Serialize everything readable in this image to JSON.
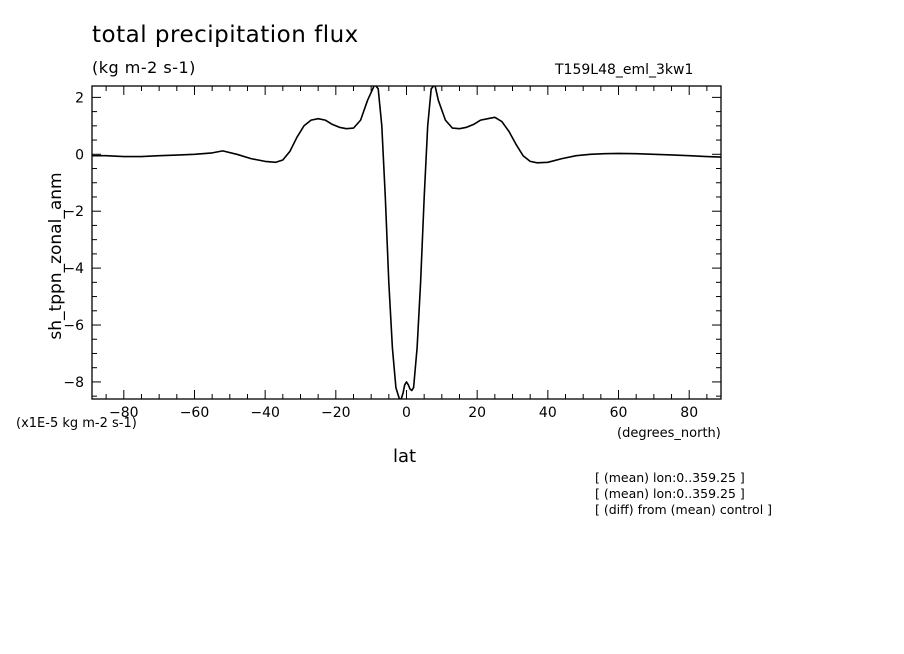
{
  "chart_data": {
    "type": "line",
    "title": "total precipitation flux",
    "subtitle": "(kg m-2 s-1)",
    "run_label": "T159L48_eml_3kw1",
    "xlabel": "lat",
    "x_unit_label": "(degrees_north)",
    "ylabel": "sh_tppn_zonal_anm",
    "y_unit_label": "(x1E-5 kg m-2 s-1)",
    "xlim": [
      -89,
      89
    ],
    "ylim": [
      -8.6,
      2.4
    ],
    "x_ticks": [
      -80,
      -60,
      -40,
      -20,
      0,
      20,
      40,
      60,
      80
    ],
    "y_ticks": [
      -8,
      -6,
      -4,
      -2,
      0,
      2
    ],
    "grid": false,
    "series": [
      {
        "x": [
          -89,
          -85,
          -80,
          -75,
          -70,
          -65,
          -60,
          -55,
          -52,
          -48,
          -44,
          -40,
          -37,
          -35,
          -33,
          -31,
          -29,
          -27,
          -25,
          -23,
          -21,
          -19,
          -17,
          -15,
          -13,
          -11,
          -9,
          -8,
          -7,
          -6,
          -5,
          -4,
          -3,
          -2,
          -1.5,
          -1,
          -0.5,
          0,
          0.5,
          1,
          1.5,
          2,
          3,
          4,
          5,
          6,
          7,
          8,
          9,
          11,
          13,
          15,
          17,
          19,
          21,
          23,
          25,
          27,
          29,
          31,
          33,
          35,
          37,
          40,
          44,
          48,
          52,
          56,
          60,
          65,
          70,
          75,
          80,
          85,
          89
        ],
        "y": [
          -0.05,
          -0.05,
          -0.08,
          -0.08,
          -0.05,
          -0.03,
          0.0,
          0.05,
          0.12,
          0.0,
          -0.15,
          -0.25,
          -0.28,
          -0.2,
          0.1,
          0.6,
          1.0,
          1.2,
          1.25,
          1.2,
          1.05,
          0.95,
          0.9,
          0.92,
          1.2,
          1.9,
          2.45,
          2.3,
          1.0,
          -1.5,
          -4.5,
          -6.8,
          -8.2,
          -8.6,
          -8.6,
          -8.4,
          -8.1,
          -8.0,
          -8.1,
          -8.25,
          -8.3,
          -8.2,
          -6.8,
          -4.5,
          -1.5,
          1.0,
          2.3,
          2.45,
          1.9,
          1.2,
          0.92,
          0.9,
          0.95,
          1.05,
          1.2,
          1.25,
          1.3,
          1.15,
          0.8,
          0.35,
          -0.05,
          -0.25,
          -0.3,
          -0.28,
          -0.15,
          -0.05,
          0.0,
          0.02,
          0.03,
          0.02,
          0.0,
          -0.02,
          -0.05,
          -0.08,
          -0.1
        ]
      }
    ]
  },
  "notes": [
    "[ (mean) lon:0..359.25 ]",
    "[ (mean) lon:0..359.25 ]",
    "[ (diff) from (mean) control ]"
  ]
}
